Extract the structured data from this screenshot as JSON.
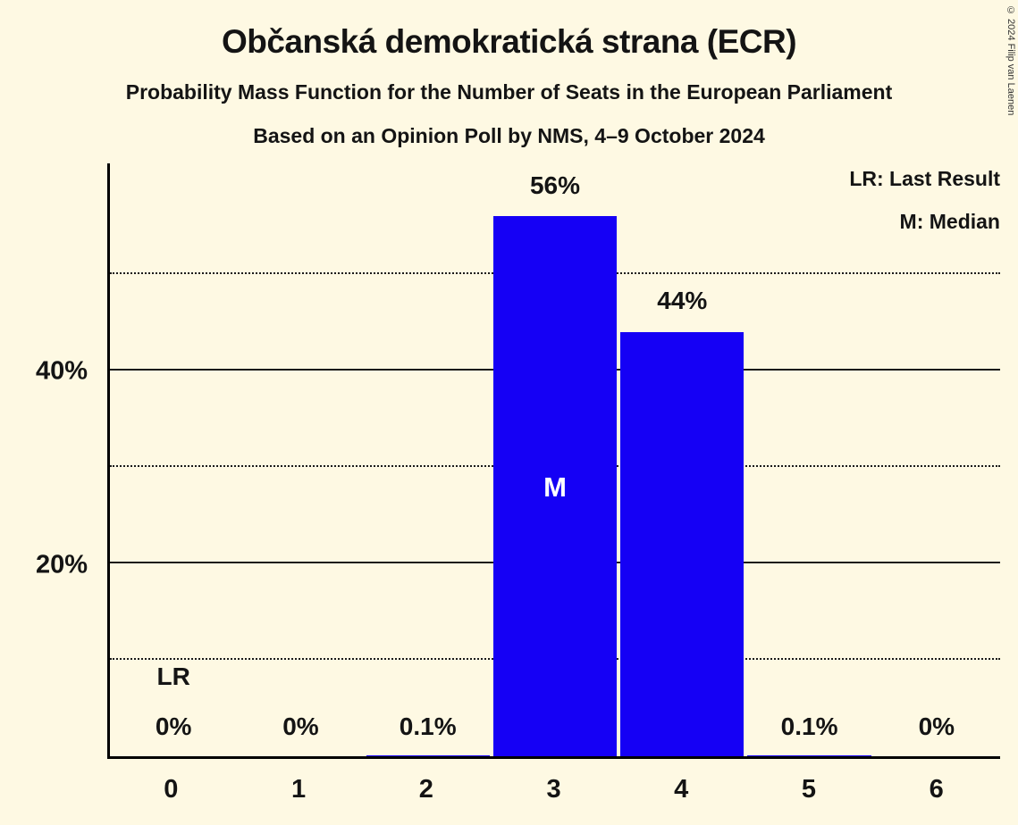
{
  "title": "Občanská demokratická strana (ECR)",
  "subtitle1": "Probability Mass Function for the Number of Seats in the European Parliament",
  "subtitle2": "Based on an Opinion Poll by NMS, 4–9 October 2024",
  "copyright": "© 2024 Filip van Laenen",
  "legend": {
    "last_result": "LR: Last Result",
    "median": "M: Median"
  },
  "colors": {
    "background": "#FEF9E3",
    "bar": "#1500F5",
    "text": "#141414"
  },
  "chart_data": {
    "type": "bar",
    "title": "Občanská demokratická strana (ECR)",
    "xlabel": "",
    "ylabel": "",
    "categories": [
      "0",
      "1",
      "2",
      "3",
      "4",
      "5",
      "6"
    ],
    "values": [
      0,
      0,
      0.1,
      56,
      44,
      0.1,
      0
    ],
    "value_labels": [
      "0%",
      "0%",
      "0.1%",
      "56%",
      "44%",
      "0.1%",
      "0%"
    ],
    "ylim": [
      0,
      61.5
    ],
    "yticks": [
      {
        "value": 20,
        "label": "20%"
      },
      {
        "value": 40,
        "label": "40%"
      }
    ],
    "solid_gridlines": [
      20,
      40
    ],
    "dotted_gridlines": [
      10,
      30,
      50
    ],
    "bar_color": "#1500F5",
    "last_result_index": 0,
    "last_result_label": "LR",
    "median_index": 3,
    "median_label": "M",
    "legend_position": "top-right",
    "grid": "horizontal-only"
  }
}
